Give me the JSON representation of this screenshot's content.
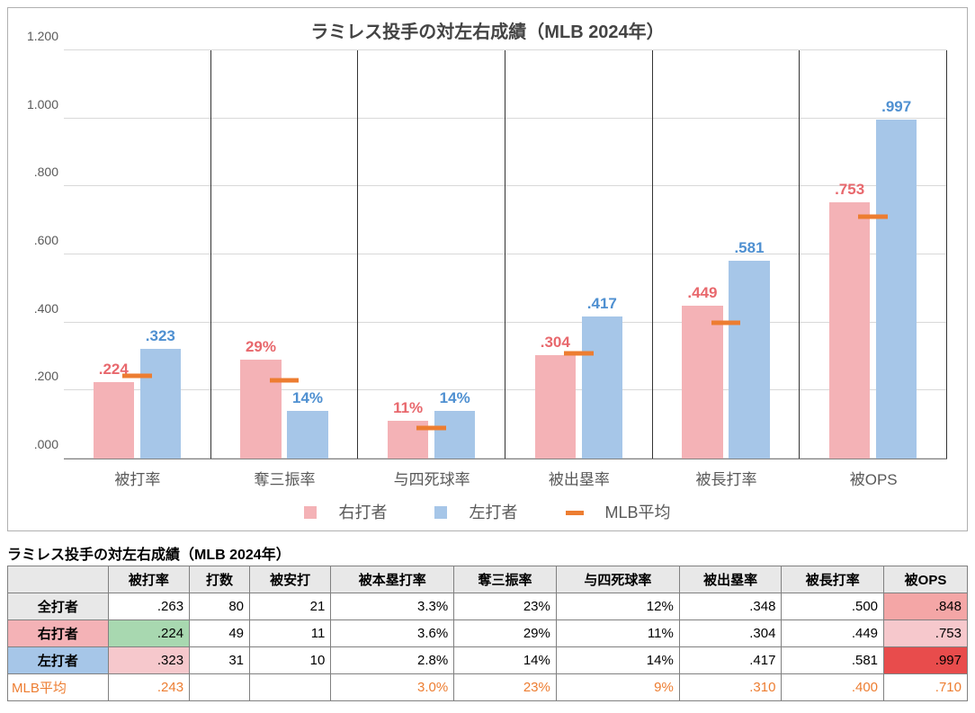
{
  "chart": {
    "title": "ラミレス投手の対左右成績（MLB 2024年）",
    "title_fontsize": 20,
    "title_color": "#444444",
    "background_color": "#ffffff",
    "grid_color": "#d9d9d9",
    "border_color": "#b0b0b0",
    "group_divider_color": "#333333",
    "ymax": 1.2,
    "yticks": [
      {
        "v": 0.0,
        "label": ".000"
      },
      {
        "v": 0.2,
        "label": ".200"
      },
      {
        "v": 0.4,
        "label": ".400"
      },
      {
        "v": 0.6,
        "label": ".600"
      },
      {
        "v": 0.8,
        "label": ".800"
      },
      {
        "v": 1.0,
        "label": "1.000"
      },
      {
        "v": 1.2,
        "label": "1.200"
      }
    ],
    "series": {
      "right": {
        "label": "右打者",
        "color": "#f4b2b6",
        "label_color": "#e8686d"
      },
      "left": {
        "label": "左打者",
        "color": "#a6c6e8",
        "label_color": "#4f90d1"
      },
      "mlb": {
        "label": "MLB平均",
        "color": "#ed7d31"
      }
    },
    "categories": [
      {
        "label": "被打率",
        "right_v": 0.224,
        "right_lbl": ".224",
        "left_v": 0.323,
        "left_lbl": ".323",
        "mlb_v": 0.243
      },
      {
        "label": "奪三振率",
        "right_v": 0.29,
        "right_lbl": "29%",
        "left_v": 0.14,
        "left_lbl": "14%",
        "mlb_v": 0.23
      },
      {
        "label": "与四死球率",
        "right_v": 0.11,
        "right_lbl": "11%",
        "left_v": 0.14,
        "left_lbl": "14%",
        "mlb_v": 0.09
      },
      {
        "label": "被出塁率",
        "right_v": 0.304,
        "right_lbl": ".304",
        "left_v": 0.417,
        "left_lbl": ".417",
        "mlb_v": 0.31
      },
      {
        "label": "被長打率",
        "right_v": 0.449,
        "right_lbl": ".449",
        "left_v": 0.581,
        "left_lbl": ".581",
        "mlb_v": 0.4
      },
      {
        "label": "被OPS",
        "right_v": 0.753,
        "right_lbl": ".753",
        "left_v": 0.997,
        "left_lbl": ".997",
        "mlb_v": 0.71
      }
    ],
    "bar_width_pct": 28,
    "bar_gap_pct": 4,
    "mlb_mark_width_pct": 20
  },
  "table": {
    "title": "ラミレス投手の対左右成績（MLB 2024年）",
    "columns": [
      "",
      "被打率",
      "打数",
      "被安打",
      "被本塁打率",
      "奪三振率",
      "与四死球率",
      "被出塁率",
      "被長打率",
      "被OPS"
    ],
    "rows": [
      {
        "head": "全打者",
        "head_bg": "#e8e8e8",
        "cells": [
          {
            "v": ".263"
          },
          {
            "v": "80"
          },
          {
            "v": "21"
          },
          {
            "v": "3.3%"
          },
          {
            "v": "23%"
          },
          {
            "v": "12%"
          },
          {
            "v": ".348"
          },
          {
            "v": ".500"
          },
          {
            "v": ".848",
            "bg": "#f4a6a6"
          }
        ]
      },
      {
        "head": "右打者",
        "head_bg": "#f4b2b6",
        "cells": [
          {
            "v": ".224",
            "bg": "#a8d8b0"
          },
          {
            "v": "49"
          },
          {
            "v": "11"
          },
          {
            "v": "3.6%"
          },
          {
            "v": "29%"
          },
          {
            "v": "11%"
          },
          {
            "v": ".304"
          },
          {
            "v": ".449"
          },
          {
            "v": ".753",
            "bg": "#f6c8cc"
          }
        ]
      },
      {
        "head": "左打者",
        "head_bg": "#a6c6e8",
        "cells": [
          {
            "v": ".323",
            "bg": "#f6c8cc"
          },
          {
            "v": "31"
          },
          {
            "v": "10"
          },
          {
            "v": "2.8%"
          },
          {
            "v": "14%"
          },
          {
            "v": "14%"
          },
          {
            "v": ".417"
          },
          {
            "v": ".581"
          },
          {
            "v": ".997",
            "bg": "#e84c4c"
          }
        ]
      }
    ],
    "mlb_row": {
      "label": "MLB平均",
      "values": [
        ".243",
        "",
        "",
        "3.0%",
        "23%",
        "9%",
        ".310",
        ".400",
        ".710"
      ],
      "color": "#ed7d31"
    }
  }
}
